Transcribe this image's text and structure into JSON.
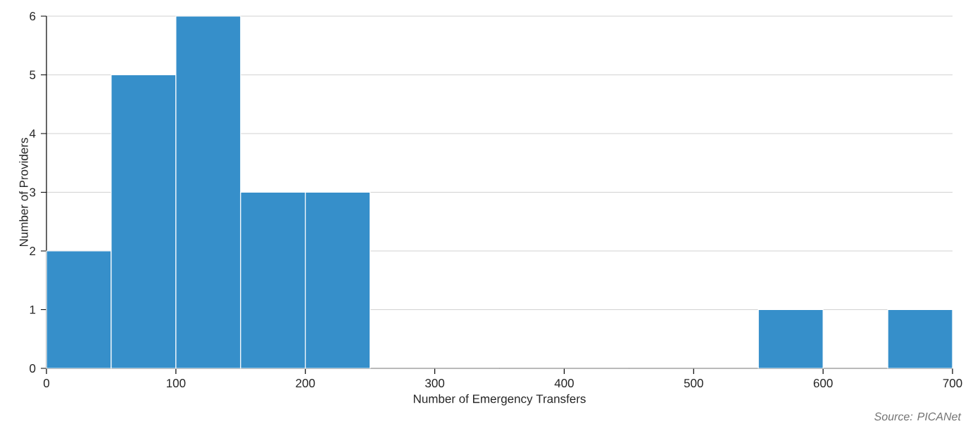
{
  "chart_data": {
    "type": "histogram",
    "xlabel": "Number of Emergency Transfers",
    "ylabel": "Number of Providers",
    "bins": [
      0,
      50,
      100,
      150,
      200,
      250,
      300,
      350,
      400,
      450,
      500,
      550,
      600,
      650,
      700
    ],
    "values": [
      2,
      5,
      6,
      3,
      3,
      0,
      0,
      0,
      0,
      0,
      0,
      1,
      0,
      1
    ],
    "color": "#368fca",
    "xlim": [
      0,
      700
    ],
    "ylim": [
      0,
      6
    ],
    "xticks": [
      0,
      100,
      200,
      300,
      400,
      500,
      600,
      700
    ],
    "yticks": [
      0,
      1,
      2,
      3,
      4,
      5,
      6
    ],
    "grid": "y",
    "annotations": [
      "Source: PICANet"
    ]
  }
}
